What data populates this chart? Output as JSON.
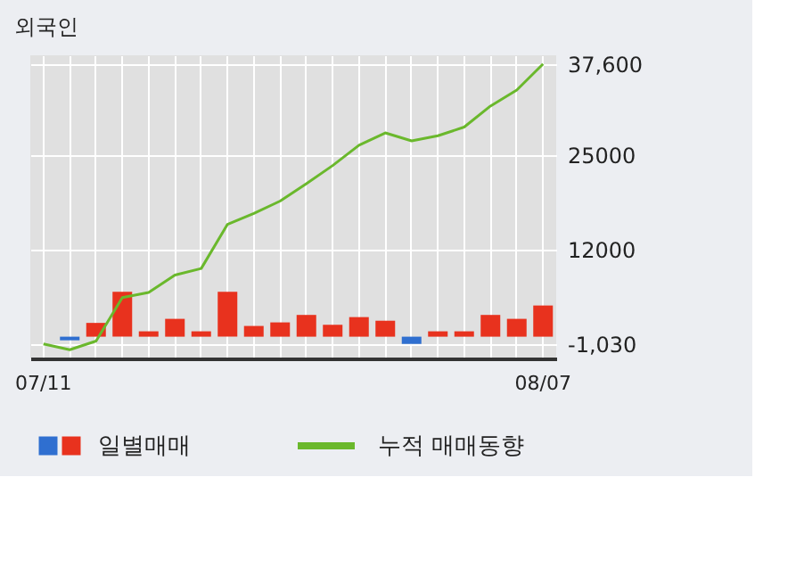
{
  "chart_data": {
    "type": "bar",
    "title": "외국인",
    "categories": [
      "07/11",
      null,
      null,
      null,
      null,
      null,
      null,
      null,
      null,
      null,
      null,
      null,
      null,
      null,
      null,
      null,
      null,
      null,
      null,
      "08/07"
    ],
    "series": [
      {
        "name": "일별매매",
        "values": [
          null,
          -500,
          1900,
          6200,
          740,
          2460,
          740,
          6200,
          1480,
          1970,
          3000,
          1640,
          2700,
          2200,
          -1000,
          740,
          740,
          3000,
          2460,
          4300
        ],
        "colors": [
          null,
          "#2f6fd0",
          "#e8321e",
          "#e8321e",
          "#e8321e",
          "#e8321e",
          "#e8321e",
          "#e8321e",
          "#e8321e",
          "#e8321e",
          "#e8321e",
          "#e8321e",
          "#e8321e",
          "#e8321e",
          "#2f6fd0",
          "#e8321e",
          "#e8321e",
          "#e8321e",
          "#e8321e",
          "#e8321e"
        ]
      },
      {
        "name": "누적 매매동향",
        "type": "line",
        "color": "#6ab82c",
        "values": [
          -1000,
          -1800,
          -600,
          5400,
          6100,
          8500,
          9400,
          15500,
          17000,
          18700,
          21100,
          23600,
          26400,
          28100,
          27000,
          27700,
          28900,
          31800,
          34000,
          37600
        ]
      }
    ],
    "ylim": [
      -3000,
      38800
    ],
    "yticks": [
      {
        "value": -1030,
        "label": "-1,030"
      },
      12000,
      25000,
      {
        "value": 37600,
        "label": "37,600"
      }
    ],
    "grid": true,
    "legend": "bottom"
  }
}
